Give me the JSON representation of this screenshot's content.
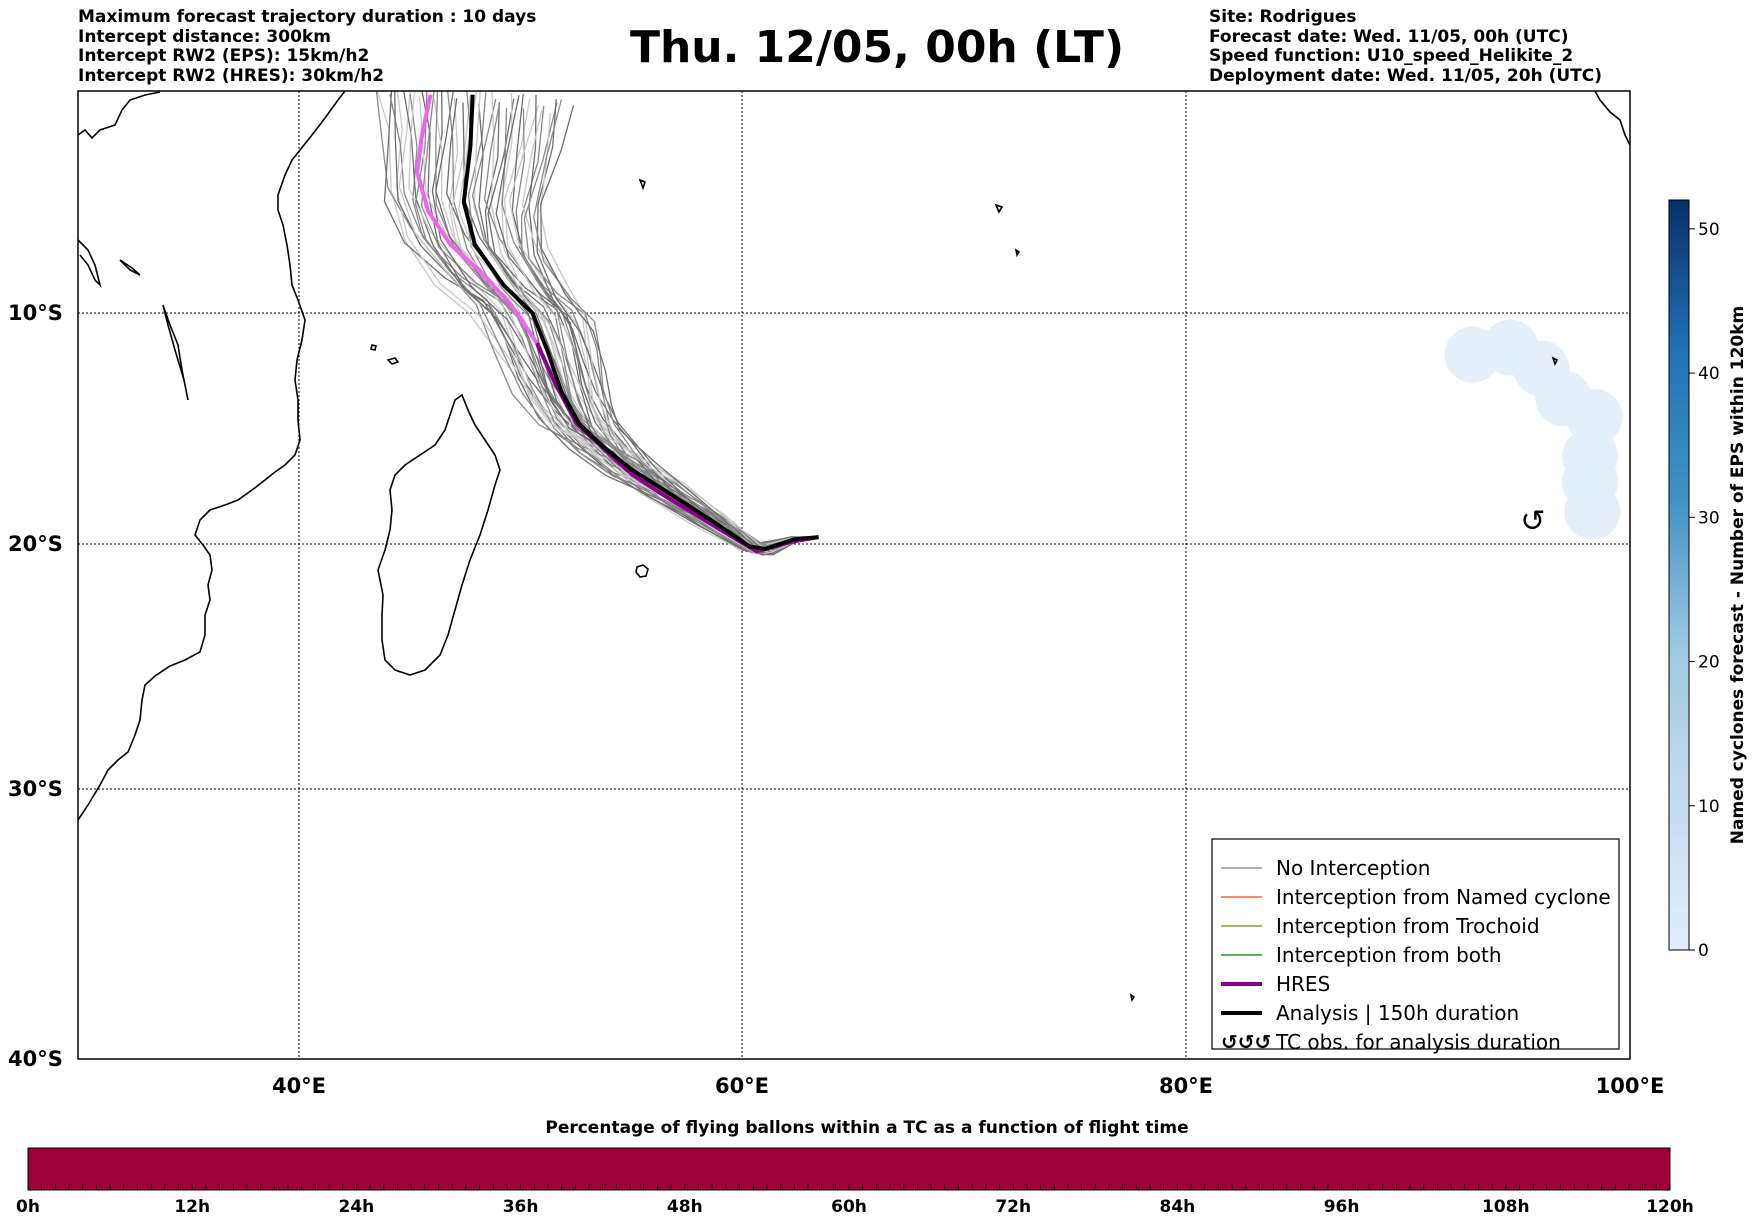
{
  "header_left": [
    "Maximum forecast trajectory duration : 10 days",
    "Intercept distance: 300km",
    "Intercept RW2 (EPS):  15km/h2",
    "Intercept RW2 (HRES): 30km/h2"
  ],
  "title": "Thu. 12/05, 00h (LT)",
  "header_right": [
    "Site: Rodrigues",
    "Forecast date: Wed. 11/05, 00h (UTC)",
    "Speed function: U10_speed_Helikite_2",
    "Deployment date: Wed. 11/05, 20h (UTC)"
  ],
  "map": {
    "lat_labels": [
      "10°S",
      "20°S",
      "30°S",
      "40°S"
    ],
    "lon_labels": [
      "40°E",
      "60°E",
      "80°E",
      "100°E"
    ],
    "lon_range": [
      30,
      100
    ],
    "lat_range": [
      -40,
      2
    ],
    "launch_site": {
      "lon": 63.4,
      "lat": -19.7
    },
    "hres_track": [
      [
        63.4,
        -19.7
      ],
      [
        62.2,
        -19.9
      ],
      [
        60.6,
        -20.3
      ],
      [
        58.5,
        -19.1
      ],
      [
        56.6,
        -18.0
      ],
      [
        55,
        -17.0
      ],
      [
        53.3,
        -15.5
      ],
      [
        52.5,
        -14.8
      ],
      [
        51.5,
        -13.0
      ],
      [
        50.7,
        -11.3
      ],
      [
        49.5,
        -9.5
      ],
      [
        48.0,
        -7.6
      ],
      [
        46.8,
        -6.3
      ],
      [
        45.8,
        -4.5
      ],
      [
        45.3,
        -2.4
      ],
      [
        45.5,
        -0.5
      ],
      [
        45.9,
        1.8
      ]
    ],
    "analysis_track": [
      [
        63.4,
        -19.7
      ],
      [
        62.3,
        -19.8
      ],
      [
        61.0,
        -20.2
      ],
      [
        60.3,
        -20.1
      ],
      [
        58.6,
        -19.0
      ],
      [
        56.5,
        -17.7
      ],
      [
        55.0,
        -16.8
      ],
      [
        53.7,
        -15.8
      ],
      [
        52.6,
        -14.8
      ],
      [
        51.8,
        -13.4
      ],
      [
        51.2,
        -11.7
      ],
      [
        50.5,
        -10.0
      ],
      [
        49.2,
        -8.5
      ],
      [
        47.9,
        -6.3
      ],
      [
        47.4,
        -4.0
      ],
      [
        47.7,
        -1.0
      ],
      [
        47.8,
        1.8
      ]
    ],
    "cyclone_blobs": [
      {
        "lon": 92.9,
        "lat": -11.8,
        "value": 3
      },
      {
        "lon": 94.6,
        "lat": -11.5,
        "value": 3
      },
      {
        "lon": 96.0,
        "lat": -12.4,
        "value": 4
      },
      {
        "lon": 97.0,
        "lat": -13.7,
        "value": 5
      },
      {
        "lon": 98.4,
        "lat": -14.5,
        "value": 6
      },
      {
        "lon": 98.2,
        "lat": -16.2,
        "value": 4
      },
      {
        "lon": 98.2,
        "lat": -17.3,
        "value": 3
      },
      {
        "lon": 98.3,
        "lat": -18.6,
        "value": 3
      }
    ],
    "tc_obs_symbol": {
      "glyph": "↺",
      "lon": 95.5,
      "lat": -19.0
    }
  },
  "colorbar": {
    "label": "Named cyclones forecast - Number of EPS within 120km",
    "ticks": [
      "0",
      "10",
      "20",
      "30",
      "40",
      "50"
    ],
    "range": [
      0,
      52
    ],
    "color_low": "#e3eef9",
    "color_high": "#08306b"
  },
  "legend": {
    "items": [
      {
        "label": "No Interception",
        "color": "#808080",
        "style": "thin"
      },
      {
        "label": "Interception from Named cyclone",
        "color": "#ff4500",
        "style": "thin"
      },
      {
        "label": "Interception from Trochoid",
        "color": "#808000",
        "style": "thin"
      },
      {
        "label": "Interception from both",
        "color": "#008000",
        "style": "thin"
      },
      {
        "label": "HRES",
        "color": "#8b008b",
        "style": "thick"
      },
      {
        "label": "Analysis | 150h duration",
        "color": "#000000",
        "style": "thick"
      },
      {
        "label": "TC obs. for analysis duration",
        "color": "#000000",
        "style": "symbol",
        "symbol": "↺↺↺"
      }
    ]
  },
  "percentage_bar": {
    "title": "Percentage of flying ballons within a TC as a function of flight time",
    "ticks": [
      "0h",
      "12h",
      "24h",
      "36h",
      "48h",
      "60h",
      "72h",
      "84h",
      "96h",
      "108h",
      "120h"
    ],
    "color": "#a0003a"
  },
  "colors": {
    "eps_member": "#808080",
    "hres": "#8b008b",
    "hres_fade": "#ee66ee",
    "analysis": "#000000",
    "gridline": "#000000"
  }
}
